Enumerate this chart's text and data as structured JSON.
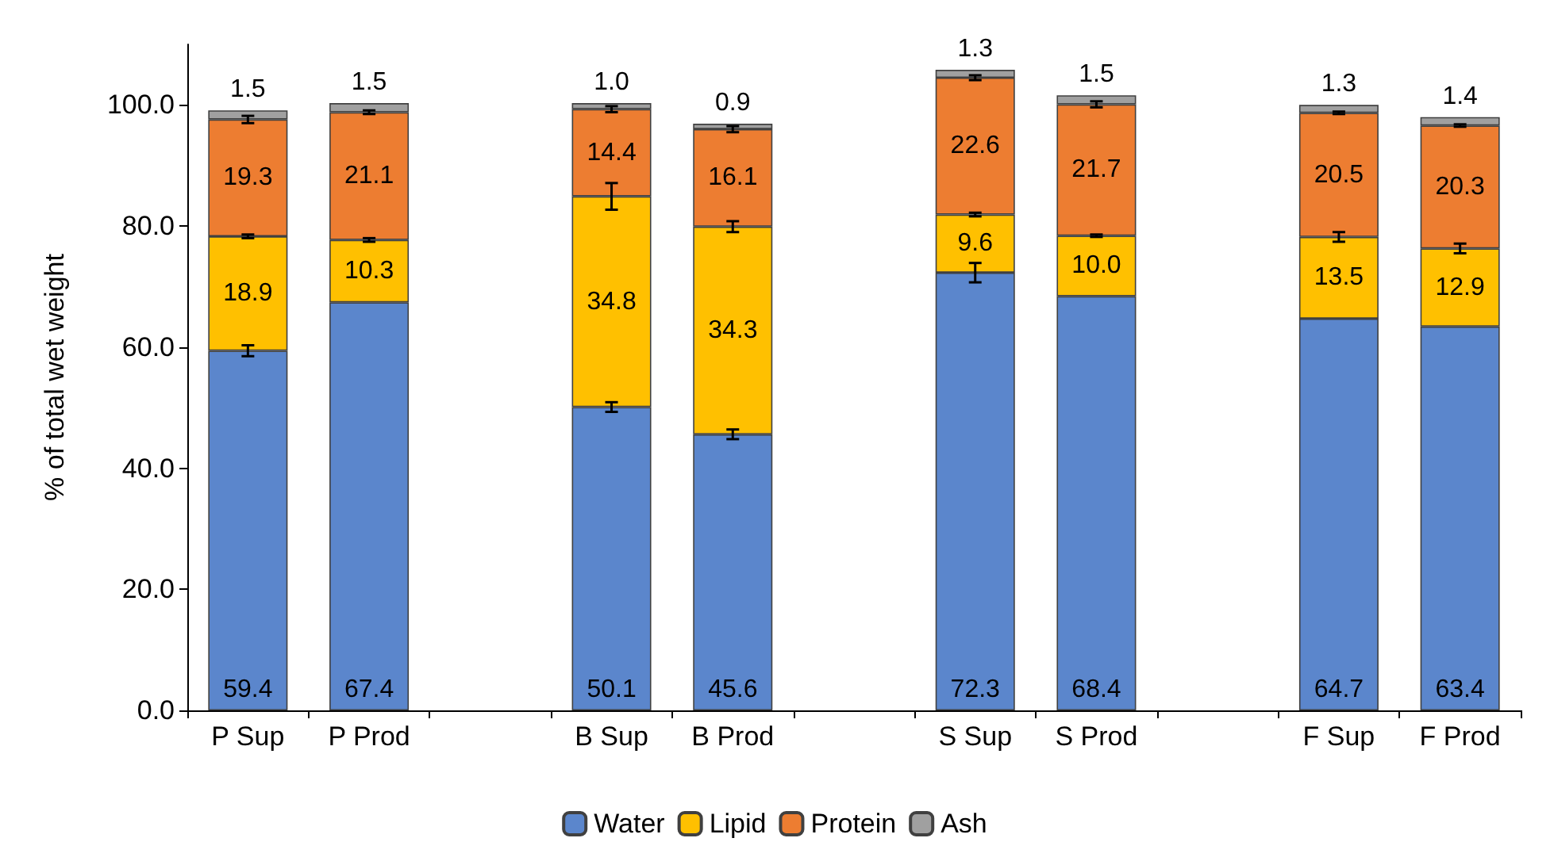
{
  "chart_data": {
    "type": "bar",
    "stacked": true,
    "ylabel": "% of total wet weight",
    "categories": [
      "P Sup",
      "P Prod",
      null,
      "B Sup",
      "B Prod",
      null,
      "S Sup",
      "S Prod",
      null,
      "F Sup",
      "F Prod"
    ],
    "series": [
      {
        "name": "Water",
        "color": "#5b86cc",
        "values": [
          59.4,
          67.4,
          null,
          50.1,
          45.6,
          null,
          72.3,
          68.4,
          null,
          64.7,
          63.4
        ],
        "value_labels": [
          "59.4",
          "67.4",
          null,
          "50.1",
          "45.6",
          null,
          "72.3",
          "68.4",
          null,
          "64.7",
          "63.4"
        ],
        "errors": [
          0.9,
          null,
          null,
          0.8,
          0.8,
          null,
          1.6,
          null,
          null,
          null,
          null
        ]
      },
      {
        "name": "Lipid",
        "color": "#ffc000",
        "values": [
          18.9,
          10.3,
          null,
          34.8,
          34.3,
          null,
          9.6,
          10.0,
          null,
          13.5,
          12.9
        ],
        "value_labels": [
          "18.9",
          "10.3",
          null,
          "34.8",
          "34.3",
          null,
          "9.6",
          "10.0",
          null,
          "13.5",
          "12.9"
        ],
        "errors": [
          0.3,
          0.3,
          null,
          2.2,
          0.9,
          null,
          0.3,
          0.2,
          null,
          0.8,
          0.8
        ]
      },
      {
        "name": "Protein",
        "color": "#ed7d31",
        "values": [
          19.3,
          21.1,
          null,
          14.4,
          16.1,
          null,
          22.6,
          21.7,
          null,
          20.5,
          20.3
        ],
        "value_labels": [
          "19.3",
          "21.1",
          null,
          "14.4",
          "16.1",
          null,
          "22.6",
          "21.7",
          null,
          "20.5",
          "20.3"
        ],
        "errors": [
          0.6,
          0.3,
          null,
          0.5,
          0.5,
          null,
          0.4,
          0.5,
          null,
          0.2,
          0.2
        ]
      },
      {
        "name": "Ash",
        "color": "#a0a0a0",
        "values": [
          1.5,
          1.5,
          null,
          1.0,
          0.9,
          null,
          1.3,
          1.5,
          null,
          1.3,
          1.4
        ],
        "value_labels": [
          "1.5",
          "1.5",
          null,
          "1.0",
          "0.9",
          null,
          "1.3",
          "1.5",
          null,
          "1.3",
          "1.4"
        ]
      }
    ],
    "ylim": [
      0,
      110
    ],
    "yticks": [
      {
        "value": 0,
        "label": "0.0"
      },
      {
        "value": 20,
        "label": "20.0"
      },
      {
        "value": 40,
        "label": "40.0"
      },
      {
        "value": 60,
        "label": "60.0"
      },
      {
        "value": 80,
        "label": "80.0"
      },
      {
        "value": 100,
        "label": "100.0"
      }
    ],
    "grid": false,
    "legend": "bottom"
  }
}
